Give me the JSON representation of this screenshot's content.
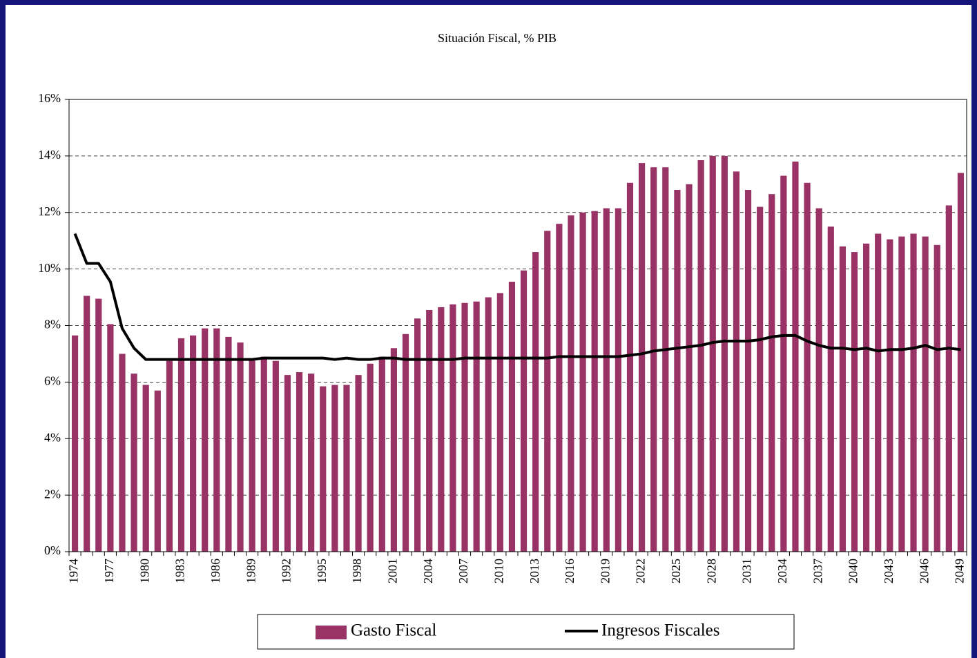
{
  "chart_data": {
    "type": "bar",
    "title": "Situación Fiscal, % PIB",
    "categories": [
      "1974",
      null,
      null,
      "1977",
      null,
      null,
      "1980",
      null,
      null,
      "1983",
      null,
      null,
      "1986",
      null,
      null,
      "1989",
      null,
      null,
      "1992",
      null,
      null,
      "1995",
      null,
      null,
      "1998",
      null,
      null,
      "2001",
      null,
      null,
      "2004",
      null,
      null,
      "2007",
      null,
      null,
      "2010",
      null,
      null,
      "2013",
      null,
      null,
      "2016",
      null,
      null,
      "2019",
      null,
      null,
      "2022",
      null,
      null,
      "2025",
      null,
      null,
      "2028",
      null,
      null,
      "2031",
      null,
      null,
      "2034",
      null,
      null,
      "2037",
      null,
      null,
      "2040",
      null,
      null,
      "2043",
      null,
      null,
      "2046",
      null,
      null,
      "2049"
    ],
    "series": [
      {
        "name": "Gasto Fiscal",
        "type": "bar",
        "color": "#993366",
        "values": [
          7.65,
          9.05,
          8.95,
          8.05,
          7.0,
          6.3,
          5.9,
          5.7,
          6.75,
          7.55,
          7.65,
          7.9,
          7.9,
          7.6,
          7.4,
          6.8,
          6.9,
          6.75,
          6.25,
          6.35,
          6.3,
          5.85,
          5.9,
          5.9,
          6.25,
          6.65,
          6.9,
          7.2,
          7.7,
          8.25,
          8.55,
          8.65,
          8.75,
          8.8,
          8.85,
          9.0,
          9.15,
          9.55,
          9.95,
          10.6,
          11.35,
          11.6,
          11.9,
          12.0,
          12.05,
          12.15,
          12.15,
          13.05,
          13.75,
          13.6,
          13.6,
          12.8,
          13.0,
          13.85,
          14.0,
          14.0,
          13.45,
          12.8,
          12.2,
          12.65,
          13.3,
          13.8,
          13.05,
          12.15,
          11.5,
          10.8,
          10.6,
          10.9,
          11.25,
          11.05,
          11.15,
          11.25,
          11.15,
          10.85,
          12.25,
          13.4
        ]
      },
      {
        "name": "Ingresos Fiscales",
        "type": "line",
        "color": "#000000",
        "values": [
          11.25,
          10.2,
          10.2,
          9.55,
          7.9,
          7.2,
          6.8,
          6.8,
          6.8,
          6.8,
          6.8,
          6.8,
          6.8,
          6.8,
          6.8,
          6.8,
          6.85,
          6.85,
          6.85,
          6.85,
          6.85,
          6.85,
          6.8,
          6.85,
          6.8,
          6.8,
          6.85,
          6.85,
          6.8,
          6.8,
          6.8,
          6.8,
          6.8,
          6.85,
          6.85,
          6.85,
          6.85,
          6.85,
          6.85,
          6.85,
          6.85,
          6.9,
          6.9,
          6.9,
          6.9,
          6.9,
          6.9,
          6.95,
          7.0,
          7.1,
          7.15,
          7.2,
          7.25,
          7.3,
          7.4,
          7.45,
          7.45,
          7.45,
          7.5,
          7.6,
          7.65,
          7.65,
          7.45,
          7.3,
          7.2,
          7.2,
          7.15,
          7.2,
          7.1,
          7.15,
          7.15,
          7.2,
          7.3,
          7.15,
          7.2,
          7.15
        ]
      }
    ],
    "ylim": [
      0,
      16
    ],
    "yticks": [
      {
        "value": 0,
        "label": "0%"
      },
      {
        "value": 2,
        "label": "2%"
      },
      {
        "value": 4,
        "label": "4%"
      },
      {
        "value": 6,
        "label": "6%"
      },
      {
        "value": 8,
        "label": "8%"
      },
      {
        "value": 10,
        "label": "10%"
      },
      {
        "value": 12,
        "label": "12%"
      },
      {
        "value": 14,
        "label": "14%"
      },
      {
        "value": 16,
        "label": "16%"
      }
    ],
    "grid": true,
    "legend": "bottom"
  }
}
